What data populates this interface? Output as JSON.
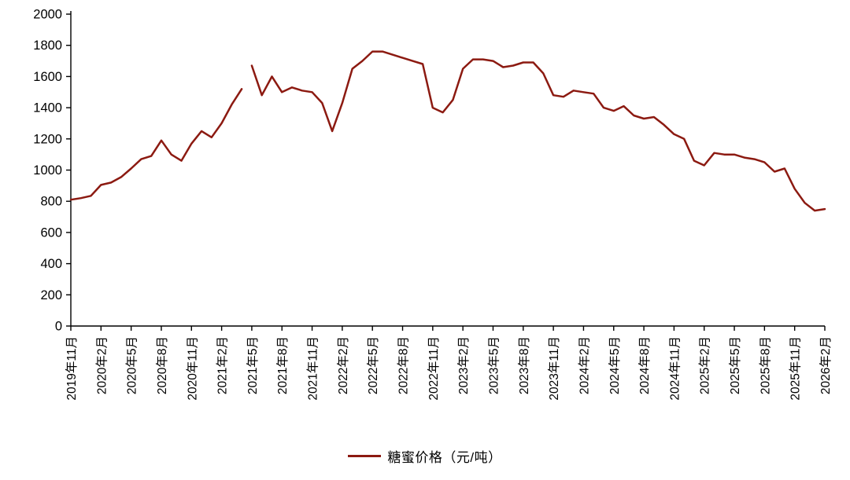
{
  "chart_data": {
    "type": "line",
    "title": "",
    "legend_label": "糖蜜价格（元/吨）",
    "line_color": "#8c1a11",
    "axis_color": "#000000",
    "ylim": [
      0,
      2000
    ],
    "y_ticks": [
      0,
      200,
      400,
      600,
      800,
      1000,
      1200,
      1400,
      1600,
      1800,
      2000
    ],
    "x_tick_every": 3,
    "x_tick_labels": [
      "2019年11月",
      "2020年2月",
      "2020年5月",
      "2020年8月",
      "2020年11月",
      "2021年2月",
      "2021年5月",
      "2021年8月",
      "2021年11月",
      "2022年2月",
      "2022年5月",
      "2022年8月",
      "2022年11月",
      "2023年2月",
      "2023年5月",
      "2023年8月",
      "2023年11月",
      "2024年2月",
      "2024年5月",
      "2024年8月",
      "2024年11月",
      "2025年2月",
      "2025年5月",
      "2025年8月",
      "2025年11月",
      "2026年2月"
    ],
    "x": [
      "2019年11月",
      "2019年12月",
      "2020年1月",
      "2020年2月",
      "2020年3月",
      "2020年4月",
      "2020年5月",
      "2020年6月",
      "2020年7月",
      "2020年8月",
      "2020年9月",
      "2020年10月",
      "2020年11月",
      "2020年12月",
      "2021年1月",
      "2021年2月",
      "2021年3月",
      "2021年4月",
      "2021年5月",
      "2021年6月",
      "2021年7月",
      "2021年8月",
      "2021年9月",
      "2021年10月",
      "2021年11月",
      "2021年12月",
      "2022年1月",
      "2022年2月",
      "2022年3月",
      "2022年4月",
      "2022年5月",
      "2022年6月",
      "2022年7月",
      "2022年8月",
      "2022年9月",
      "2022年10月",
      "2022年11月",
      "2022年12月",
      "2023年1月",
      "2023年2月",
      "2023年3月",
      "2023年4月",
      "2023年5月",
      "2023年6月",
      "2023年7月",
      "2023年8月",
      "2023年9月",
      "2023年10月",
      "2023年11月",
      "2023年12月",
      "2024年1月",
      "2024年2月",
      "2024年3月",
      "2024年4月",
      "2024年5月",
      "2024年6月",
      "2024年7月",
      "2024年8月",
      "2024年9月",
      "2024年10月",
      "2024年11月",
      "2024年12月",
      "2025年1月",
      "2025年2月",
      "2025年3月",
      "2025年4月",
      "2025年5月",
      "2025年6月",
      "2025年7月",
      "2025年8月",
      "2025年9月",
      "2025年10月",
      "2025年11月",
      "2025年12月",
      "2026年1月",
      "2026年2月"
    ],
    "values": [
      810,
      820,
      835,
      905,
      920,
      955,
      1010,
      1070,
      1090,
      1190,
      1100,
      1060,
      1170,
      1250,
      1210,
      1300,
      1420,
      1520,
      1670,
      1480,
      1600,
      1500,
      1530,
      1510,
      1500,
      1430,
      1250,
      1430,
      1650,
      1700,
      1760,
      1760,
      1740,
      1720,
      1700,
      1680,
      1400,
      1370,
      1450,
      1650,
      1710,
      1710,
      1700,
      1660,
      1670,
      1690,
      1690,
      1620,
      1480,
      1470,
      1510,
      1500,
      1490,
      1400,
      1380,
      1410,
      1350,
      1330,
      1340,
      1290,
      1230,
      1200,
      1060,
      1030,
      1110,
      1100,
      1100,
      1080,
      1070,
      1050,
      990,
      1010,
      880,
      790,
      740,
      750
    ],
    "gap_after_index": 17,
    "grid": "off",
    "legend_position": "bottom-center"
  }
}
